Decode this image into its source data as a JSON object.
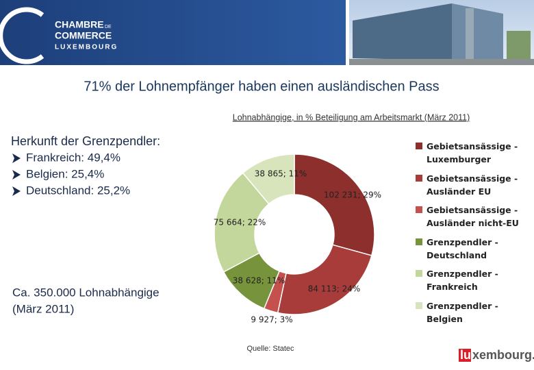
{
  "header": {
    "logo": [
      "CHAMBRE",
      "DE",
      "COMMERCE",
      "LUXEMBOURG"
    ]
  },
  "title": "71% der Lohnempfänger haben einen ausländischen Pass",
  "left": {
    "heading": "Herkunft der Grenzpendler:",
    "bullets": [
      "Frankreich: 49,4%",
      "Belgien: 25,4%",
      "Deutschland: 25,2%"
    ],
    "note": [
      "Ca. 350.000 Lohnabhängige",
      "(März 2011)"
    ]
  },
  "chart_data": {
    "type": "donut",
    "subtitle": "Lohnabhängige, in % Beteiligung am Arbeitsmarkt (März 2011)",
    "categories": [
      "Gebietsansässige - Luxemburger",
      "Gebietsansässige - Ausländer EU",
      "Gebietsansässige - Ausländer nicht-EU",
      "Grenzpendler - Deutschland",
      "Grenzpendler - Frankreich",
      "Grenzpendler - Belgien"
    ],
    "values": [
      102231,
      84113,
      9927,
      38628,
      75664,
      38865
    ],
    "value_labels": [
      "102 231; 29%",
      "84 113; 24%",
      "9 927; 3%",
      "38 628; 11%",
      "75 664; 22%",
      "38 865; 11%"
    ],
    "colors": [
      "#8c2f2d",
      "#a83c3a",
      "#c5514e",
      "#77933c",
      "#c3d69b",
      "#d8e4bc"
    ],
    "legend": "right",
    "source": "Quelle: Statec"
  },
  "footer": {
    "logo_red": "lu",
    "logo_rest": "xembourg."
  }
}
